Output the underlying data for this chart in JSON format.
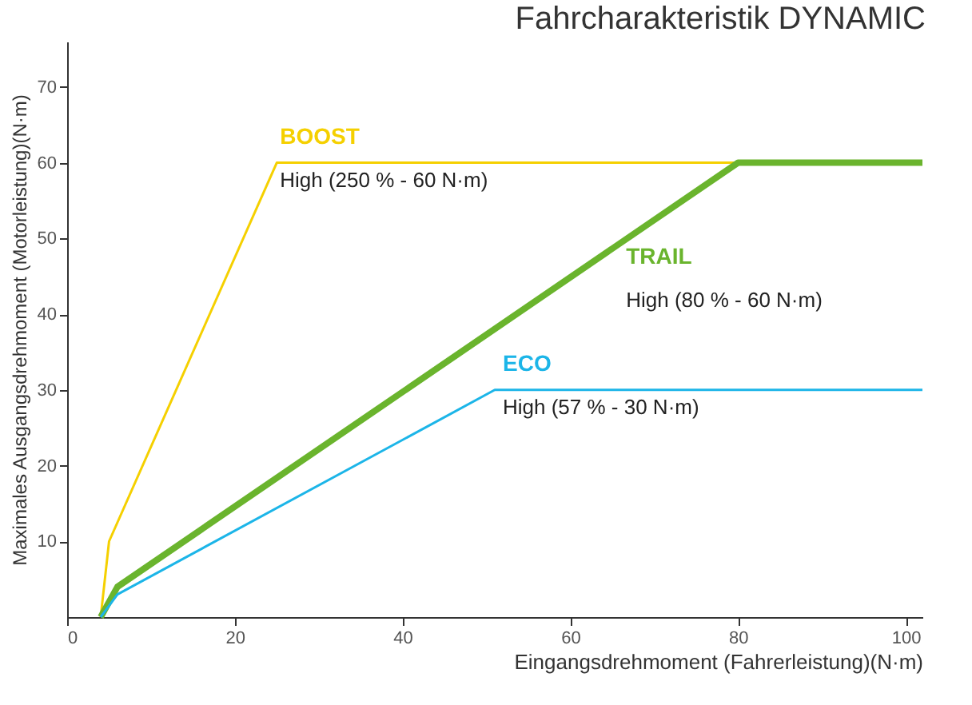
{
  "chart_data": {
    "type": "line",
    "title": "Fahrcharakteristik DYNAMIC",
    "xlabel": "Eingangsdrehmoment (Fahrerleistung)(N·m)",
    "ylabel": "Maximales Ausgangsdrehmoment (Motorleistung)(N·m)",
    "series": [
      {
        "name": "BOOST",
        "color": "#f5d000",
        "x": [
          4,
          5,
          25,
          80
        ],
        "values": [
          0,
          10,
          60,
          60
        ]
      },
      {
        "name": "TRAIL",
        "color": "#6ab42d",
        "x": [
          4,
          6,
          80,
          102
        ],
        "values": [
          0,
          4,
          60,
          60
        ]
      },
      {
        "name": "ECO",
        "color": "#1cb5e8",
        "x": [
          4,
          6,
          51,
          102
        ],
        "values": [
          0,
          3,
          30,
          30
        ]
      }
    ],
    "annotations": [
      "High (250 % - 60 N·m)",
      "High (80 % - 60 N·m)",
      "High (57 % - 30 N·m)"
    ],
    "xlim": [
      0,
      102
    ],
    "xticks": [
      0,
      20,
      40,
      60,
      80,
      100
    ],
    "ylim": [
      0,
      76
    ],
    "yticks": [
      10,
      20,
      30,
      40,
      50,
      60,
      70
    ],
    "grid": false,
    "legend": false,
    "marker": "none",
    "line_style": "solid"
  }
}
